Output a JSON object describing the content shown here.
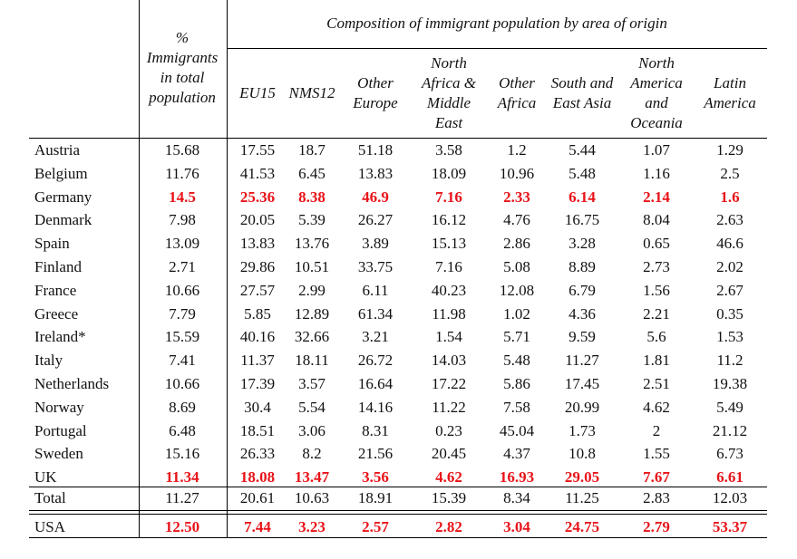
{
  "header": {
    "group_title": "Composition of immigrant population by area of origin",
    "immigrants_col": [
      "%",
      "Immigrants",
      "in total",
      "population"
    ],
    "columns": [
      [
        "EU15"
      ],
      [
        "NMS12"
      ],
      [
        "Other",
        "Europe"
      ],
      [
        "North",
        "Africa &",
        "Middle",
        "East"
      ],
      [
        "Other",
        "Africa"
      ],
      [
        "South and",
        "East Asia"
      ],
      [
        "North",
        "America",
        "and",
        "Oceania"
      ],
      [
        "Latin",
        "America"
      ]
    ]
  },
  "rows": [
    {
      "country": "Austria",
      "immigrants": "15.68",
      "values": [
        "17.55",
        "18.7",
        "51.18",
        "3.58",
        "1.2",
        "5.44",
        "1.07",
        "1.29"
      ]
    },
    {
      "country": "Belgium",
      "immigrants": "11.76",
      "values": [
        "41.53",
        "6.45",
        "13.83",
        "18.09",
        "10.96",
        "5.48",
        "1.16",
        "2.5"
      ]
    },
    {
      "country": "Germany",
      "immigrants": "14.5",
      "values": [
        "25.36",
        "8.38",
        "46.9",
        "7.16",
        "2.33",
        "6.14",
        "2.14",
        "1.6"
      ],
      "highlight": true
    },
    {
      "country": "Denmark",
      "immigrants": "7.98",
      "values": [
        "20.05",
        "5.39",
        "26.27",
        "16.12",
        "4.76",
        "16.75",
        "8.04",
        "2.63"
      ]
    },
    {
      "country": "Spain",
      "immigrants": "13.09",
      "values": [
        "13.83",
        "13.76",
        "3.89",
        "15.13",
        "2.86",
        "3.28",
        "0.65",
        "46.6"
      ]
    },
    {
      "country": "Finland",
      "immigrants": "2.71",
      "values": [
        "29.86",
        "10.51",
        "33.75",
        "7.16",
        "5.08",
        "8.89",
        "2.73",
        "2.02"
      ]
    },
    {
      "country": "France",
      "immigrants": "10.66",
      "values": [
        "27.57",
        "2.99",
        "6.11",
        "40.23",
        "12.08",
        "6.79",
        "1.56",
        "2.67"
      ]
    },
    {
      "country": "Greece",
      "immigrants": "7.79",
      "values": [
        "5.85",
        "12.89",
        "61.34",
        "11.98",
        "1.02",
        "4.36",
        "2.21",
        "0.35"
      ]
    },
    {
      "country": "Ireland*",
      "immigrants": "15.59",
      "values": [
        "40.16",
        "32.66",
        "3.21",
        "1.54",
        "5.71",
        "9.59",
        "5.6",
        "1.53"
      ]
    },
    {
      "country": "Italy",
      "immigrants": "7.41",
      "values": [
        "11.37",
        "18.11",
        "26.72",
        "14.03",
        "5.48",
        "11.27",
        "1.81",
        "11.2"
      ]
    },
    {
      "country": "Netherlands",
      "immigrants": "10.66",
      "values": [
        "17.39",
        "3.57",
        "16.64",
        "17.22",
        "5.86",
        "17.45",
        "2.51",
        "19.38"
      ]
    },
    {
      "country": "Norway",
      "immigrants": "8.69",
      "values": [
        "30.4",
        "5.54",
        "14.16",
        "11.22",
        "7.58",
        "20.99",
        "4.62",
        "5.49"
      ]
    },
    {
      "country": "Portugal",
      "immigrants": "6.48",
      "values": [
        "18.51",
        "3.06",
        "8.31",
        "0.23",
        "45.04",
        "1.73",
        "2",
        "21.12"
      ]
    },
    {
      "country": "Sweden",
      "immigrants": "15.16",
      "values": [
        "26.33",
        "8.2",
        "21.56",
        "20.45",
        "4.37",
        "10.8",
        "1.55",
        "6.73"
      ]
    },
    {
      "country": "UK",
      "immigrants": "11.34",
      "values": [
        "18.08",
        "13.47",
        "3.56",
        "4.62",
        "16.93",
        "29.05",
        "7.67",
        "6.61"
      ],
      "highlight": true
    }
  ],
  "total": {
    "country": "Total",
    "immigrants": "11.27",
    "values": [
      "20.61",
      "10.63",
      "18.91",
      "15.39",
      "8.34",
      "11.25",
      "2.83",
      "12.03"
    ]
  },
  "usa": {
    "country": "USA",
    "immigrants": "12.50",
    "values": [
      "7.44",
      "3.23",
      "2.57",
      "2.82",
      "3.04",
      "24.75",
      "2.79",
      "53.37"
    ],
    "highlight": true
  },
  "colors": {
    "highlight": "#e8141a",
    "text": "#111111"
  }
}
